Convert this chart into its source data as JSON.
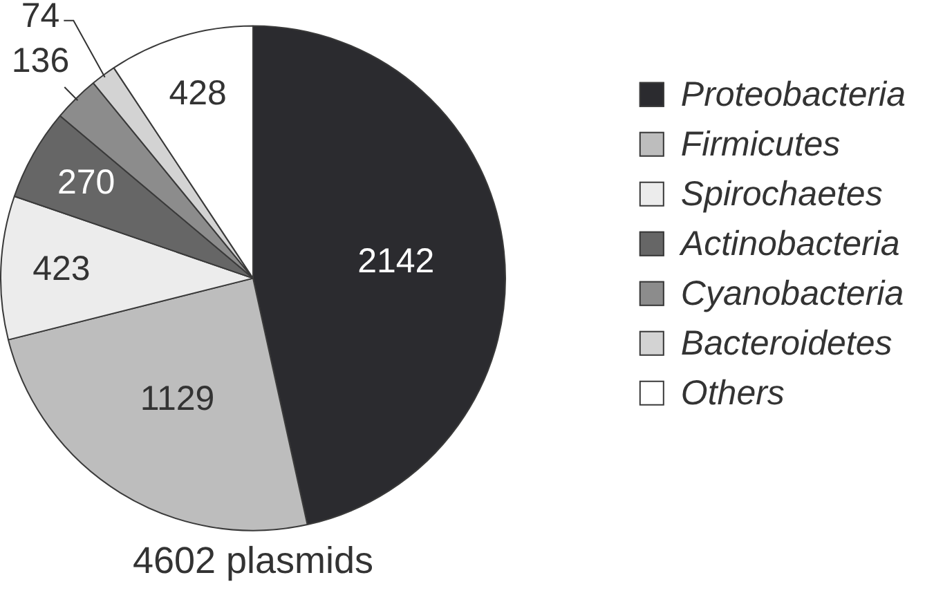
{
  "chart_data": {
    "type": "pie",
    "title": "4602 plasmids",
    "categories": [
      "Proteobacteria",
      "Firmicutes",
      "Spirochaetes",
      "Actinobacteria",
      "Cyanobacteria",
      "Bacteroidetes",
      "Others"
    ],
    "values": [
      2142,
      1129,
      423,
      270,
      136,
      74,
      428
    ],
    "colors": [
      "#2b2b2f",
      "#bdbdbd",
      "#ececec",
      "#666666",
      "#8c8c8c",
      "#d3d3d3",
      "#ffffff"
    ],
    "data_labels": true,
    "legend": "right"
  }
}
